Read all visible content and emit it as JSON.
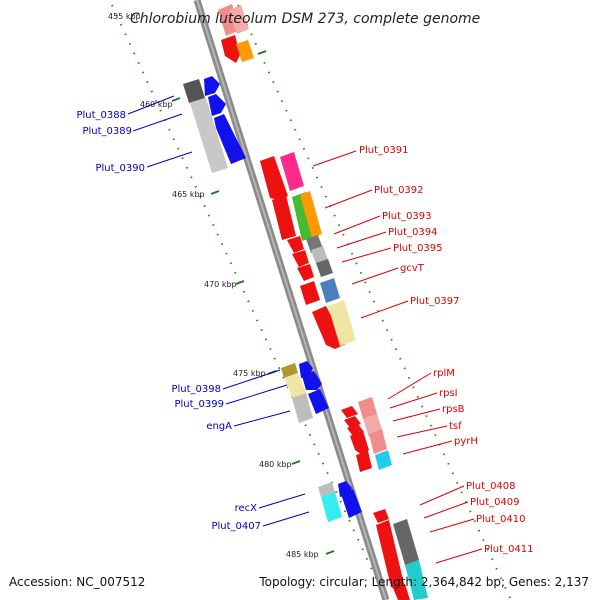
{
  "title": "Chlorobium luteolum DSM 273, complete genome",
  "footer": {
    "accession": "Accession: NC_007512",
    "topology": "Topology: circular; Length: 2,364,842 bp; Genes: 2,137"
  },
  "colors": {
    "backbone": "#8c8c8c",
    "forward_label": "#dd0000",
    "reverse_label": "#0000bb",
    "tick": "#2e8b2e"
  },
  "ticks": [
    {
      "label": "455 kbp",
      "pos": 455
    },
    {
      "label": "460 kbp",
      "pos": 460
    },
    {
      "label": "465 kbp",
      "pos": 465
    },
    {
      "label": "470 kbp",
      "pos": 470
    },
    {
      "label": "475 kbp",
      "pos": 475
    },
    {
      "label": "480 kbp",
      "pos": 480
    },
    {
      "label": "485 kbp",
      "pos": 485
    }
  ],
  "forward_genes": [
    {
      "label": "Plut_0391",
      "color": "#ee1111",
      "icon": "forward-arrow"
    },
    {
      "label": "Plut_0392",
      "color": "#ee1111",
      "icon": "forward-arrow"
    },
    {
      "label": "Plut_0393",
      "color": "#ee1111",
      "icon": "forward-arrow"
    },
    {
      "label": "Plut_0394",
      "color": "#ee1111",
      "icon": "forward-arrow"
    },
    {
      "label": "Plut_0395",
      "color": "#ee1111",
      "icon": "forward-arrow"
    },
    {
      "label": "gcvT",
      "color": "#ee1111",
      "icon": "forward-arrow"
    },
    {
      "label": "Plut_0397",
      "color": "#ee1111",
      "icon": "forward-arrow"
    },
    {
      "label": "rplM",
      "color": "#ee1111",
      "icon": "forward-arrow"
    },
    {
      "label": "rpsI",
      "color": "#ee1111",
      "icon": "forward-arrow"
    },
    {
      "label": "rpsB",
      "color": "#ee1111",
      "icon": "forward-arrow"
    },
    {
      "label": "tsf",
      "color": "#ee1111",
      "icon": "forward-arrow"
    },
    {
      "label": "pyrH",
      "color": "#ee1111",
      "icon": "forward-arrow"
    },
    {
      "label": "Plut_0408",
      "color": "#ee1111",
      "icon": "forward-arrow"
    },
    {
      "label": "Plut_0409",
      "color": "#ee1111",
      "icon": "forward-arrow"
    },
    {
      "label": "Plut_0410",
      "color": "#ee1111",
      "icon": "forward-arrow"
    },
    {
      "label": "Plut_0411",
      "color": "#ee1111",
      "icon": "forward-arrow"
    }
  ],
  "reverse_genes": [
    {
      "label": "Plut_0388",
      "color": "#1111ee",
      "icon": "reverse-arrow"
    },
    {
      "label": "Plut_0389",
      "color": "#1111ee",
      "icon": "reverse-arrow"
    },
    {
      "label": "Plut_0390",
      "color": "#1111ee",
      "icon": "reverse-arrow"
    },
    {
      "label": "Plut_0398",
      "color": "#1111ee",
      "icon": "reverse-arrow"
    },
    {
      "label": "Plut_0399",
      "color": "#1111ee",
      "icon": "reverse-arrow"
    },
    {
      "label": "engA",
      "color": "#1111ee",
      "icon": "reverse-arrow"
    },
    {
      "label": "recX",
      "color": "#1111ee",
      "icon": "reverse-arrow"
    },
    {
      "label": "Plut_0407",
      "color": "#1111ee",
      "icon": "reverse-arrow"
    }
  ]
}
